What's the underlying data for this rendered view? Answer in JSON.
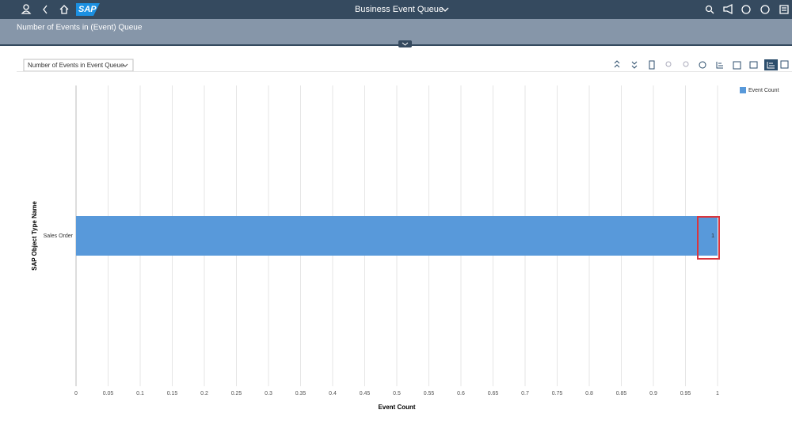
{
  "shell": {
    "logo": "SAP",
    "title": "Business Event Queue"
  },
  "page": {
    "title": "Number of Events in (Event) Queue",
    "view_select": "Number of Events in Event Queue"
  },
  "chart_data": {
    "type": "bar",
    "orientation": "horizontal",
    "x_label": "Event Count",
    "y_label": "SAP Object Type Name",
    "categories": [
      "Sales Order"
    ],
    "series": [
      {
        "name": "Event Count",
        "color": "#5899da",
        "values": [
          1
        ]
      }
    ],
    "xlim": [
      0,
      1
    ],
    "xticks": [
      0,
      0.05,
      0.1,
      0.15,
      0.2,
      0.25,
      0.3,
      0.35,
      0.4,
      0.45,
      0.5,
      0.55,
      0.6,
      0.65,
      0.7,
      0.75,
      0.8,
      0.85,
      0.9,
      0.95,
      1
    ],
    "grid": true,
    "legend": "top-right"
  }
}
